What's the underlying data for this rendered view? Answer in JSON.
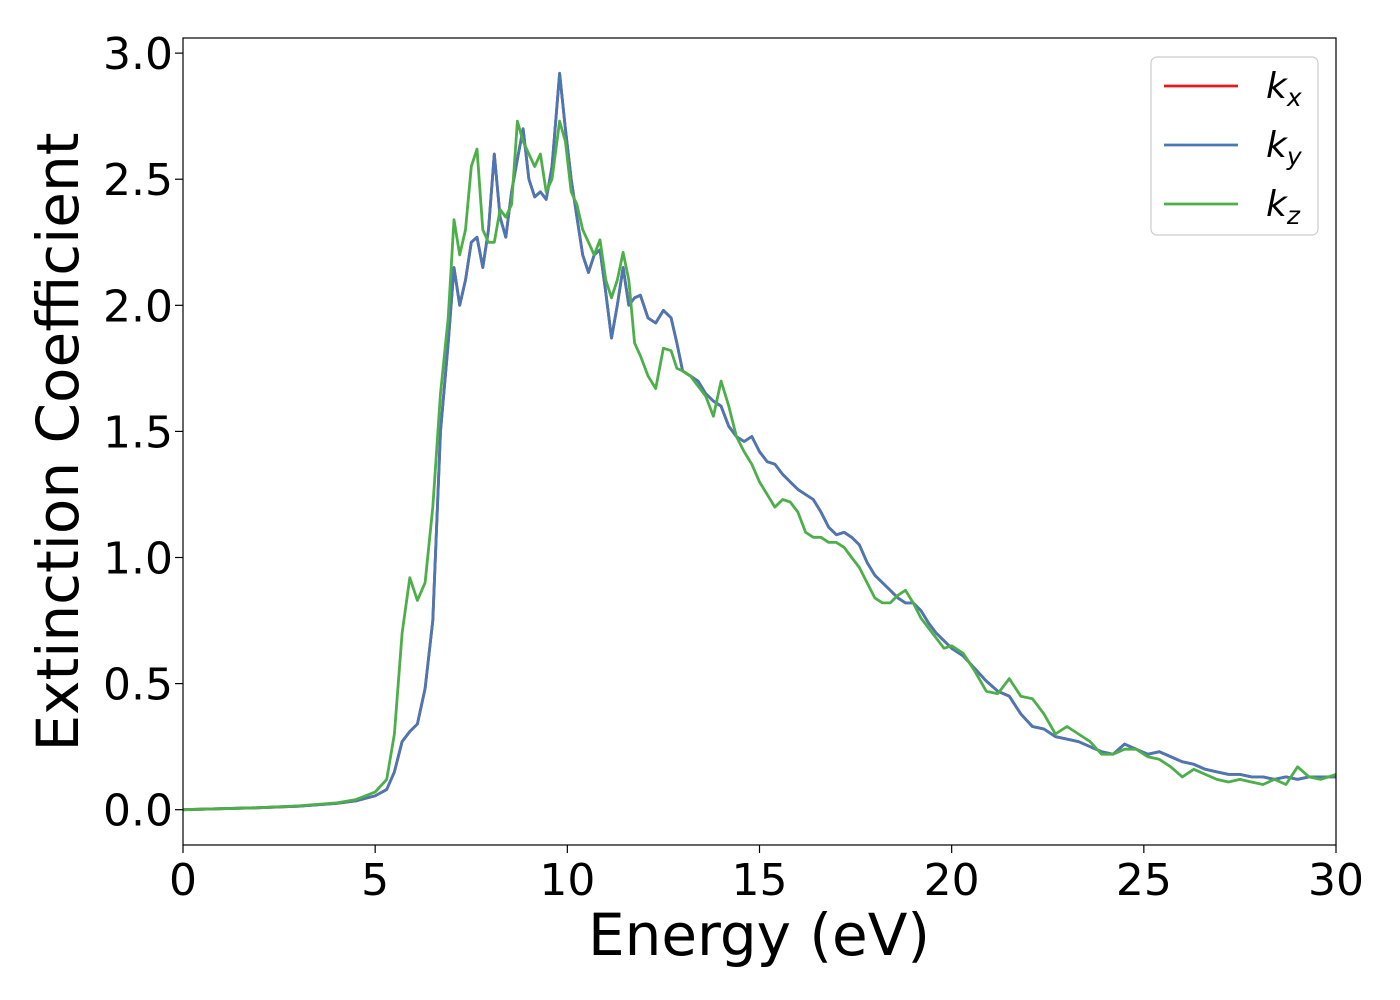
{
  "chart_data": {
    "type": "line",
    "xlabel": "Energy (eV)",
    "ylabel": "Extinction Coefficient",
    "xlim": [
      0,
      30
    ],
    "ylim": [
      -0.14,
      3.06
    ],
    "xticks": [
      0,
      5,
      10,
      15,
      20,
      25,
      30
    ],
    "yticks": [
      0.0,
      0.5,
      1.0,
      1.5,
      2.0,
      2.5,
      3.0
    ],
    "xtick_labels": [
      "0",
      "5",
      "10",
      "15",
      "20",
      "25",
      "30"
    ],
    "ytick_labels": [
      "0.0",
      "0.5",
      "1.0",
      "1.5",
      "2.0",
      "2.5",
      "3.0"
    ],
    "grid": false,
    "legend_position": "top-right",
    "series": [
      {
        "name": "k",
        "subscript": "x",
        "color": "#e41a1c",
        "x": [
          0,
          1,
          2,
          3,
          4,
          4.5,
          5,
          5.3,
          5.5,
          5.7,
          5.9,
          6.1,
          6.3,
          6.5,
          6.7,
          6.9,
          7.05,
          7.2,
          7.35,
          7.5,
          7.65,
          7.8,
          7.95,
          8.1,
          8.25,
          8.4,
          8.55,
          8.7,
          8.85,
          9.0,
          9.15,
          9.3,
          9.45,
          9.6,
          9.8,
          9.95,
          10.1,
          10.25,
          10.4,
          10.55,
          10.7,
          10.85,
          11.0,
          11.15,
          11.3,
          11.45,
          11.6,
          11.75,
          11.9,
          12.1,
          12.3,
          12.5,
          12.7,
          12.85,
          13.0,
          13.2,
          13.4,
          13.6,
          13.8,
          14.0,
          14.2,
          14.4,
          14.6,
          14.8,
          15.0,
          15.2,
          15.4,
          15.6,
          15.8,
          16.0,
          16.2,
          16.4,
          16.6,
          16.8,
          17.0,
          17.2,
          17.4,
          17.6,
          17.8,
          18.0,
          18.2,
          18.4,
          18.6,
          18.8,
          19.0,
          19.2,
          19.4,
          19.6,
          19.8,
          20.0,
          20.3,
          20.6,
          20.9,
          21.2,
          21.5,
          21.8,
          22.1,
          22.4,
          22.7,
          23.0,
          23.3,
          23.6,
          23.9,
          24.2,
          24.5,
          24.8,
          25.1,
          25.4,
          25.7,
          26.0,
          26.3,
          26.6,
          26.9,
          27.2,
          27.5,
          27.8,
          28.1,
          28.4,
          28.7,
          29.0,
          29.3,
          29.6,
          30.0
        ],
        "y": [
          0.0,
          0.004,
          0.008,
          0.014,
          0.025,
          0.035,
          0.055,
          0.08,
          0.15,
          0.27,
          0.31,
          0.34,
          0.48,
          0.75,
          1.5,
          1.85,
          2.15,
          2.0,
          2.1,
          2.25,
          2.27,
          2.15,
          2.3,
          2.6,
          2.35,
          2.27,
          2.45,
          2.58,
          2.7,
          2.5,
          2.43,
          2.45,
          2.42,
          2.55,
          2.92,
          2.7,
          2.5,
          2.35,
          2.2,
          2.13,
          2.2,
          2.22,
          2.05,
          1.87,
          2.0,
          2.15,
          2.0,
          2.03,
          2.04,
          1.95,
          1.93,
          1.98,
          1.95,
          1.85,
          1.74,
          1.72,
          1.7,
          1.65,
          1.62,
          1.6,
          1.52,
          1.48,
          1.46,
          1.48,
          1.42,
          1.38,
          1.37,
          1.33,
          1.3,
          1.27,
          1.25,
          1.23,
          1.18,
          1.12,
          1.09,
          1.1,
          1.08,
          1.05,
          0.98,
          0.93,
          0.9,
          0.87,
          0.84,
          0.82,
          0.82,
          0.79,
          0.74,
          0.7,
          0.67,
          0.64,
          0.61,
          0.56,
          0.51,
          0.47,
          0.45,
          0.38,
          0.33,
          0.32,
          0.29,
          0.28,
          0.27,
          0.25,
          0.23,
          0.22,
          0.26,
          0.24,
          0.22,
          0.23,
          0.21,
          0.19,
          0.18,
          0.16,
          0.15,
          0.14,
          0.14,
          0.13,
          0.13,
          0.12,
          0.13,
          0.12,
          0.13,
          0.13,
          0.13
        ]
      },
      {
        "name": "k",
        "subscript": "y",
        "color": "#4a78b5",
        "x": [
          0,
          1,
          2,
          3,
          4,
          4.5,
          5,
          5.3,
          5.5,
          5.7,
          5.9,
          6.1,
          6.3,
          6.5,
          6.7,
          6.9,
          7.05,
          7.2,
          7.35,
          7.5,
          7.65,
          7.8,
          7.95,
          8.1,
          8.25,
          8.4,
          8.55,
          8.7,
          8.85,
          9.0,
          9.15,
          9.3,
          9.45,
          9.6,
          9.8,
          9.95,
          10.1,
          10.25,
          10.4,
          10.55,
          10.7,
          10.85,
          11.0,
          11.15,
          11.3,
          11.45,
          11.6,
          11.75,
          11.9,
          12.1,
          12.3,
          12.5,
          12.7,
          12.85,
          13.0,
          13.2,
          13.4,
          13.6,
          13.8,
          14.0,
          14.2,
          14.4,
          14.6,
          14.8,
          15.0,
          15.2,
          15.4,
          15.6,
          15.8,
          16.0,
          16.2,
          16.4,
          16.6,
          16.8,
          17.0,
          17.2,
          17.4,
          17.6,
          17.8,
          18.0,
          18.2,
          18.4,
          18.6,
          18.8,
          19.0,
          19.2,
          19.4,
          19.6,
          19.8,
          20.0,
          20.3,
          20.6,
          20.9,
          21.2,
          21.5,
          21.8,
          22.1,
          22.4,
          22.7,
          23.0,
          23.3,
          23.6,
          23.9,
          24.2,
          24.5,
          24.8,
          25.1,
          25.4,
          25.7,
          26.0,
          26.3,
          26.6,
          26.9,
          27.2,
          27.5,
          27.8,
          28.1,
          28.4,
          28.7,
          29.0,
          29.3,
          29.6,
          30.0
        ],
        "y": [
          0.0,
          0.004,
          0.008,
          0.014,
          0.025,
          0.035,
          0.055,
          0.08,
          0.15,
          0.27,
          0.31,
          0.34,
          0.48,
          0.75,
          1.5,
          1.85,
          2.15,
          2.0,
          2.1,
          2.25,
          2.27,
          2.15,
          2.3,
          2.6,
          2.35,
          2.27,
          2.45,
          2.58,
          2.7,
          2.5,
          2.43,
          2.45,
          2.42,
          2.55,
          2.92,
          2.7,
          2.5,
          2.35,
          2.2,
          2.13,
          2.2,
          2.22,
          2.05,
          1.87,
          2.0,
          2.15,
          2.0,
          2.03,
          2.04,
          1.95,
          1.93,
          1.98,
          1.95,
          1.85,
          1.74,
          1.72,
          1.7,
          1.65,
          1.62,
          1.6,
          1.52,
          1.48,
          1.46,
          1.48,
          1.42,
          1.38,
          1.37,
          1.33,
          1.3,
          1.27,
          1.25,
          1.23,
          1.18,
          1.12,
          1.09,
          1.1,
          1.08,
          1.05,
          0.98,
          0.93,
          0.9,
          0.87,
          0.84,
          0.82,
          0.82,
          0.79,
          0.74,
          0.7,
          0.67,
          0.64,
          0.61,
          0.56,
          0.51,
          0.47,
          0.45,
          0.38,
          0.33,
          0.32,
          0.29,
          0.28,
          0.27,
          0.25,
          0.23,
          0.22,
          0.26,
          0.24,
          0.22,
          0.23,
          0.21,
          0.19,
          0.18,
          0.16,
          0.15,
          0.14,
          0.14,
          0.13,
          0.13,
          0.12,
          0.13,
          0.12,
          0.13,
          0.13,
          0.13
        ]
      },
      {
        "name": "k",
        "subscript": "z",
        "color": "#4daf4a",
        "x": [
          0,
          1,
          2,
          3,
          4,
          4.5,
          5,
          5.3,
          5.5,
          5.7,
          5.9,
          6.1,
          6.3,
          6.5,
          6.7,
          6.9,
          7.05,
          7.2,
          7.35,
          7.5,
          7.65,
          7.8,
          7.95,
          8.1,
          8.25,
          8.4,
          8.55,
          8.7,
          8.85,
          9.0,
          9.15,
          9.3,
          9.45,
          9.6,
          9.8,
          9.95,
          10.1,
          10.25,
          10.4,
          10.55,
          10.7,
          10.85,
          11.0,
          11.15,
          11.3,
          11.45,
          11.6,
          11.75,
          11.9,
          12.1,
          12.3,
          12.5,
          12.7,
          12.85,
          13.0,
          13.2,
          13.4,
          13.6,
          13.8,
          14.0,
          14.2,
          14.4,
          14.6,
          14.8,
          15.0,
          15.2,
          15.4,
          15.6,
          15.8,
          16.0,
          16.2,
          16.4,
          16.6,
          16.8,
          17.0,
          17.2,
          17.4,
          17.6,
          17.8,
          18.0,
          18.2,
          18.4,
          18.6,
          18.8,
          19.0,
          19.2,
          19.4,
          19.6,
          19.8,
          20.0,
          20.3,
          20.6,
          20.9,
          21.2,
          21.5,
          21.8,
          22.1,
          22.4,
          22.7,
          23.0,
          23.3,
          23.6,
          23.9,
          24.2,
          24.5,
          24.8,
          25.1,
          25.4,
          25.7,
          26.0,
          26.3,
          26.6,
          26.9,
          27.2,
          27.5,
          27.8,
          28.1,
          28.4,
          28.7,
          29.0,
          29.3,
          29.6,
          30.0
        ],
        "y": [
          0.0,
          0.004,
          0.008,
          0.015,
          0.027,
          0.04,
          0.07,
          0.12,
          0.3,
          0.7,
          0.92,
          0.83,
          0.9,
          1.2,
          1.65,
          1.95,
          2.34,
          2.2,
          2.3,
          2.55,
          2.62,
          2.3,
          2.25,
          2.25,
          2.38,
          2.35,
          2.4,
          2.73,
          2.65,
          2.6,
          2.55,
          2.6,
          2.45,
          2.5,
          2.73,
          2.65,
          2.45,
          2.4,
          2.3,
          2.25,
          2.2,
          2.26,
          2.1,
          2.03,
          2.1,
          2.21,
          2.1,
          1.85,
          1.8,
          1.72,
          1.67,
          1.83,
          1.82,
          1.75,
          1.74,
          1.72,
          1.68,
          1.64,
          1.56,
          1.7,
          1.6,
          1.48,
          1.42,
          1.37,
          1.3,
          1.25,
          1.2,
          1.23,
          1.22,
          1.18,
          1.1,
          1.08,
          1.08,
          1.06,
          1.06,
          1.04,
          1.0,
          0.96,
          0.9,
          0.84,
          0.82,
          0.82,
          0.85,
          0.87,
          0.82,
          0.76,
          0.72,
          0.68,
          0.64,
          0.65,
          0.62,
          0.55,
          0.47,
          0.46,
          0.52,
          0.45,
          0.44,
          0.38,
          0.3,
          0.33,
          0.3,
          0.27,
          0.22,
          0.22,
          0.24,
          0.24,
          0.21,
          0.2,
          0.17,
          0.13,
          0.16,
          0.14,
          0.12,
          0.11,
          0.12,
          0.11,
          0.1,
          0.12,
          0.1,
          0.17,
          0.13,
          0.12,
          0.14
        ]
      }
    ]
  }
}
